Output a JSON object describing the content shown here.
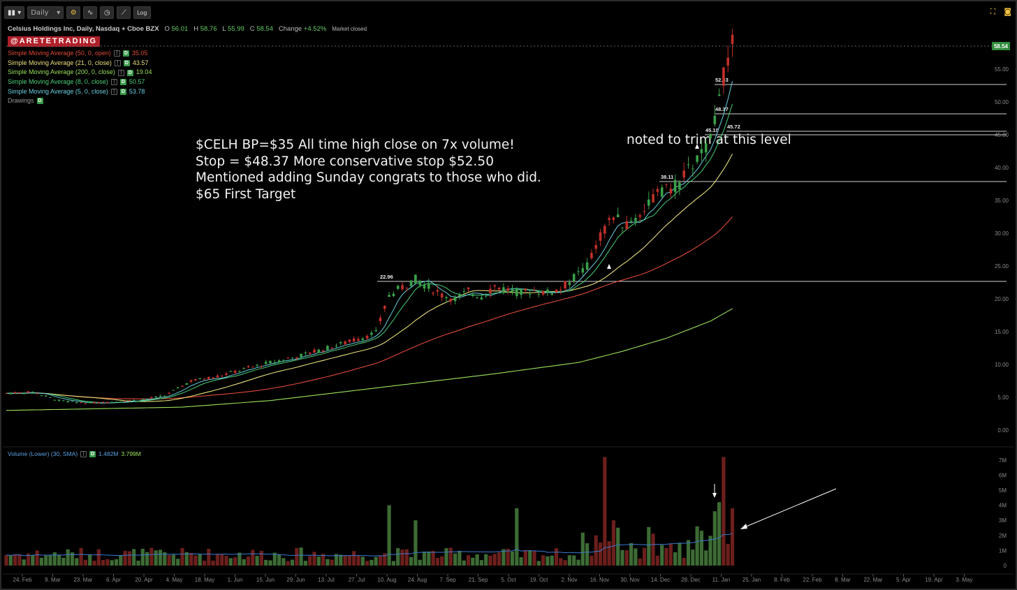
{
  "toolbar": {
    "interval": "Daily",
    "log_label": "Log"
  },
  "header": {
    "symbol_title": "Celsius Holdings Inc, Daily, Nasdaq + Cboe BZX",
    "open_label": "O",
    "open": "56.01",
    "high_label": "H",
    "high": "58.76",
    "low_label": "L",
    "low": "55.99",
    "close_label": "C",
    "close": "58.54",
    "change_label": "Change",
    "change": "+4.52%",
    "status": "Market closed"
  },
  "watermark": "@ARETETRADING",
  "indicators": [
    {
      "label": "Simple Moving Average (50, 0, open)",
      "value": "35.05",
      "color": "#e04a3a"
    },
    {
      "label": "Simple Moving Average (21, 0, close)",
      "value": "43.57",
      "color": "#e8e07a"
    },
    {
      "label": "Simple Moving Average (200, 0, close)",
      "value": "19.04",
      "color": "#9be05a"
    },
    {
      "label": "Simple Moving Average (8, 0, close)",
      "value": "50.57",
      "color": "#4ad07a"
    },
    {
      "label": "Simple Moving Average (5, 0, close)",
      "value": "53.78",
      "color": "#6ad0e0"
    },
    {
      "label": "Drawings",
      "value": "",
      "color": "#999999"
    }
  ],
  "annotations": {
    "main": [
      "$CELH BP=$35 All time high close on 7x volume!",
      "Stop = $48.37 More conservative stop $52.50",
      "Mentioned adding Sunday congrats to those who did.",
      "$65 First Target"
    ],
    "trim_note": "noted to trim at this level"
  },
  "price_axis": [
    "55.00",
    "50.00",
    "45.00",
    "40.00",
    "35.00",
    "30.00",
    "25.00",
    "20.00",
    "15.00",
    "10.00",
    "5.00",
    "0.00"
  ],
  "last_price_tag": "58.54",
  "level_labels": [
    "52.83",
    "48.37",
    "45.72",
    "45.10",
    "38.11",
    "22.96"
  ],
  "volume": {
    "label": "Volume (Lower) (30, SMA)",
    "value1": "1.482M",
    "value2": "3.799M",
    "axis": [
      "7M",
      "6M",
      "5M",
      "4M",
      "3M",
      "2M",
      "1M",
      "0"
    ]
  },
  "time_axis": [
    "24. Feb",
    "9. Mar",
    "23. Mar",
    "6. Apr",
    "20. Apr",
    "4. May",
    "18. May",
    "1. Jun",
    "15. Jun",
    "29. Jun",
    "13. Jul",
    "27. Jul",
    "10. Aug",
    "24. Aug",
    "7. Sep",
    "21. Sep",
    "5. Oct",
    "19. Oct",
    "2. Nov",
    "16. Nov",
    "30. Nov",
    "14. Dec",
    "28. Dec",
    "11. Jan",
    "25. Jan",
    "8. Feb",
    "22. Feb",
    "8. Mar",
    "22. Mar",
    "5. Apr",
    "19. Apr",
    "3. May"
  ],
  "chart_data": {
    "type": "line",
    "ylim": [
      0,
      60
    ],
    "levels": [
      52.83,
      48.37,
      45.72,
      45.1,
      38.11,
      22.96
    ],
    "price_anchors": [
      [
        0,
        5.6
      ],
      [
        6,
        5.8
      ],
      [
        12,
        4.5
      ],
      [
        18,
        4.1
      ],
      [
        24,
        4.3
      ],
      [
        30,
        4.6
      ],
      [
        36,
        5.2
      ],
      [
        42,
        7.5
      ],
      [
        48,
        8.2
      ],
      [
        54,
        9.3
      ],
      [
        60,
        10.3
      ],
      [
        66,
        11.2
      ],
      [
        72,
        12.3
      ],
      [
        78,
        13.5
      ],
      [
        84,
        14.8
      ],
      [
        87,
        20.5
      ],
      [
        90,
        21.8
      ],
      [
        93,
        23.0
      ],
      [
        96,
        21.8
      ],
      [
        99,
        20.6
      ],
      [
        102,
        20.0
      ],
      [
        105,
        21.1
      ],
      [
        108,
        20.4
      ],
      [
        111,
        21.9
      ],
      [
        114,
        21.4
      ],
      [
        117,
        20.9
      ],
      [
        120,
        21.3
      ],
      [
        123,
        20.9
      ],
      [
        126,
        21.5
      ],
      [
        129,
        23.2
      ],
      [
        132,
        24.9
      ],
      [
        135,
        29.5
      ],
      [
        138,
        32.5
      ],
      [
        141,
        31.0
      ],
      [
        144,
        33.0
      ],
      [
        147,
        35.5
      ],
      [
        150,
        36.5
      ],
      [
        153,
        37.5
      ],
      [
        156,
        40.5
      ],
      [
        158,
        42.0
      ],
      [
        160,
        44.0
      ],
      [
        161,
        47.5
      ],
      [
        162,
        52.0
      ],
      [
        163,
        54.0
      ],
      [
        164,
        56.0
      ],
      [
        165,
        58.5
      ]
    ],
    "sma200_anchors": [
      [
        0,
        3.0
      ],
      [
        40,
        3.5
      ],
      [
        60,
        4.5
      ],
      [
        85,
        6.5
      ],
      [
        110,
        8.5
      ],
      [
        130,
        10.3
      ],
      [
        140,
        12.0
      ],
      [
        150,
        14.0
      ],
      [
        160,
        16.6
      ],
      [
        165,
        18.5
      ]
    ],
    "volume_spikes_M": [
      [
        87,
        4.0
      ],
      [
        93,
        3.0
      ],
      [
        116,
        3.8
      ],
      [
        136,
        7.2
      ],
      [
        138,
        3.0
      ],
      [
        157,
        2.6
      ],
      [
        161,
        3.6
      ],
      [
        162,
        4.2
      ],
      [
        163,
        7.2
      ],
      [
        165,
        3.8
      ]
    ]
  }
}
